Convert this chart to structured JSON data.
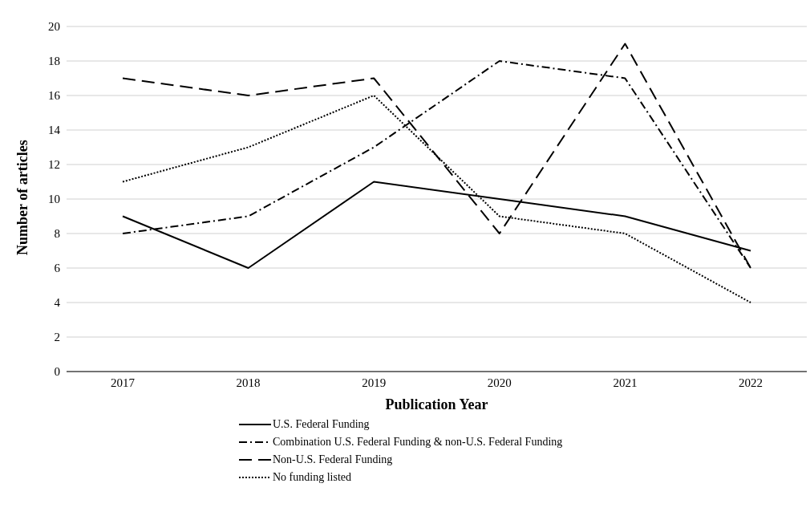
{
  "chart_data": {
    "type": "line",
    "xlabel": "Publication Year",
    "ylabel": "Number of articles",
    "categories": [
      "2017",
      "2018",
      "2019",
      "2020",
      "2021",
      "2022"
    ],
    "series": [
      {
        "name": "U.S. Federal Funding",
        "color": "#000000",
        "line_style": "solid",
        "values": [
          9,
          6,
          11,
          10,
          9,
          7
        ]
      },
      {
        "name": "Combination U.S. Federal Funding & non-U.S. Federal Funding",
        "color": "#000000",
        "line_style": "dashdot",
        "values": [
          8,
          9,
          13,
          18,
          17,
          6
        ]
      },
      {
        "name": "Non-U.S. Federal Funding",
        "color": "#000000",
        "line_style": "dashed",
        "values": [
          17,
          16,
          17,
          8,
          19,
          6
        ]
      },
      {
        "name": "No funding listed",
        "color": "#000000",
        "line_style": "dotted",
        "values": [
          11,
          13,
          16,
          9,
          8,
          4
        ]
      }
    ],
    "ylim": [
      0,
      20
    ],
    "yticks": [
      0,
      2,
      4,
      6,
      8,
      10,
      12,
      14,
      16,
      18,
      20
    ],
    "grid": "y",
    "legend": "bottom",
    "marker": "none"
  }
}
